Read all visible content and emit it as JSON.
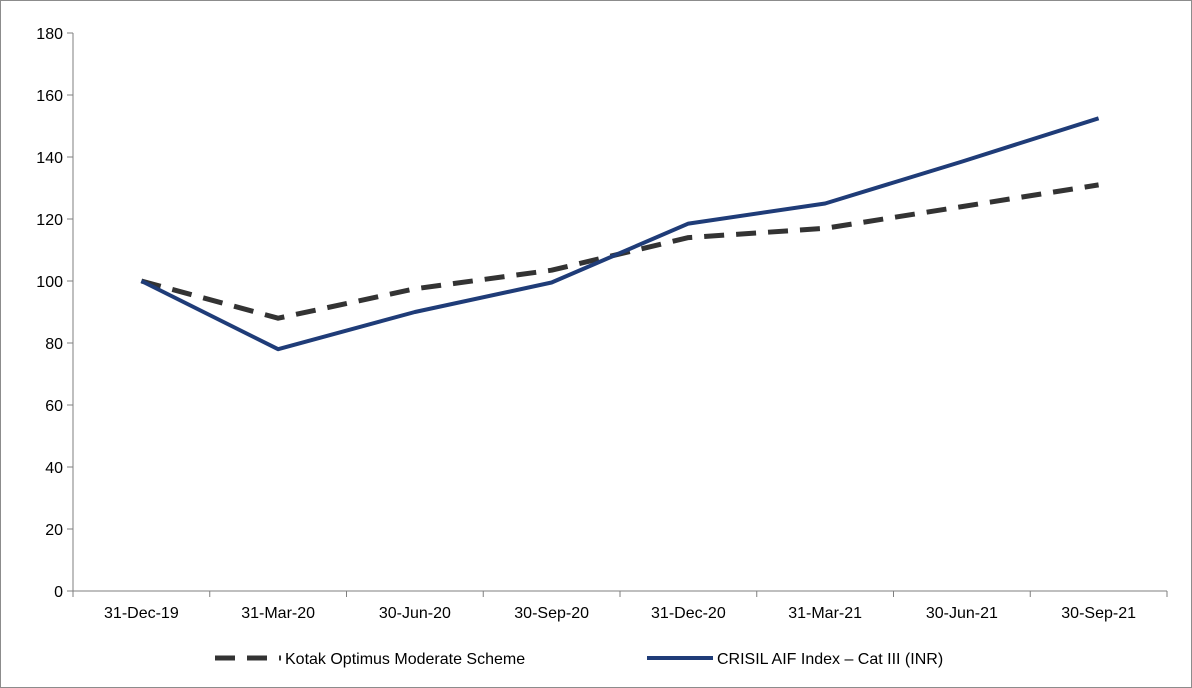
{
  "chart_data": {
    "type": "line",
    "title": "",
    "xlabel": "",
    "ylabel": "",
    "categories": [
      "31-Dec-19",
      "31-Mar-20",
      "30-Jun-20",
      "30-Sep-20",
      "31-Dec-20",
      "31-Mar-21",
      "30-Jun-21",
      "30-Sep-21"
    ],
    "ylim": [
      0,
      180
    ],
    "yticks": [
      "0",
      "20",
      "40",
      "60",
      "80",
      "100",
      "120",
      "140",
      "160",
      "180"
    ],
    "grid": false,
    "legend_position": "bottom",
    "series": [
      {
        "name": "Kotak Optimus Moderate Scheme",
        "values": [
          100,
          88,
          97.5,
          103.5,
          114,
          117,
          124,
          131
        ],
        "color": "#333333",
        "style": "dashed"
      },
      {
        "name": "CRISIL AIF Index – Cat III (INR)",
        "values": [
          100,
          78,
          90,
          99.5,
          118.5,
          125,
          138.5,
          152.5
        ],
        "color": "#1f3c78",
        "style": "solid"
      }
    ]
  }
}
